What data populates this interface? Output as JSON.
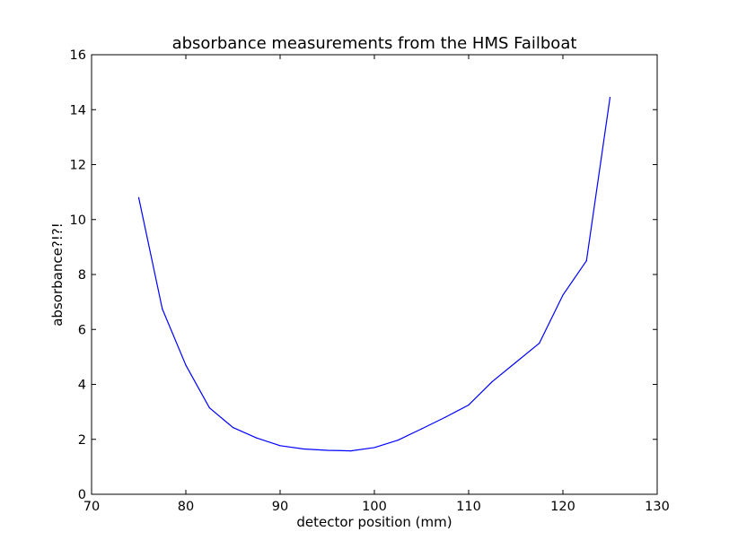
{
  "chart_data": {
    "type": "line",
    "title": "absorbance measurements from the HMS Failboat",
    "xlabel": "detector position (mm)",
    "ylabel": "absorbance?!?!",
    "xlim": [
      70,
      130
    ],
    "ylim": [
      0,
      16
    ],
    "xticks": [
      "70",
      "80",
      "90",
      "100",
      "110",
      "120",
      "130"
    ],
    "yticks": [
      "0",
      "2",
      "4",
      "6",
      "8",
      "10",
      "12",
      "14",
      "16"
    ],
    "grid": false,
    "series": [
      {
        "color": "#0000ff",
        "x": [
          75,
          77.5,
          80,
          82.5,
          85,
          87.5,
          90,
          92.5,
          95,
          97.5,
          100,
          102.5,
          105,
          107.5,
          110,
          112.5,
          115,
          117.5,
          120,
          122.5,
          125
        ],
        "y": [
          10.8,
          6.75,
          4.7,
          3.15,
          2.43,
          2.05,
          1.77,
          1.65,
          1.6,
          1.58,
          1.7,
          1.97,
          2.38,
          2.8,
          3.25,
          4.1,
          4.8,
          5.5,
          7.25,
          8.5,
          14.45
        ]
      }
    ]
  }
}
